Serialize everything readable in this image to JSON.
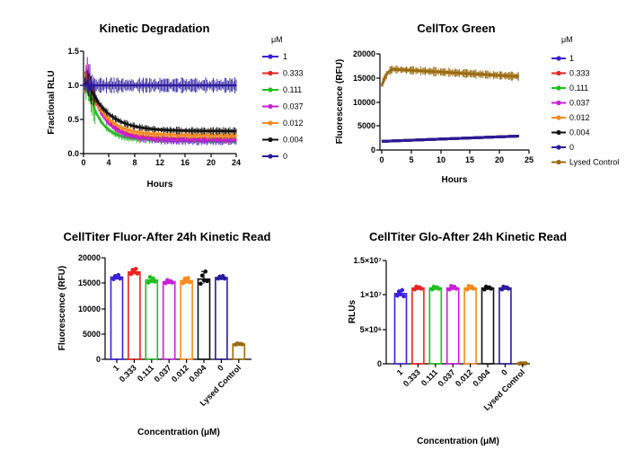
{
  "chart_data": [
    {
      "type": "line",
      "title": "Kinetic Degradation",
      "xlabel": "Hours",
      "ylabel": "Fractional RLU",
      "xlim": [
        0,
        24
      ],
      "ylim": [
        0.0,
        1.5
      ],
      "xticks": [
        "0",
        "4",
        "8",
        "12",
        "16",
        "20",
        "24"
      ],
      "yticks": [
        "0.0",
        "0.5",
        "1.0",
        "1.5"
      ],
      "legend_title": "μM",
      "legend_position": "right",
      "series": [
        {
          "name": "1",
          "color": "#3a1fd6",
          "start": 1.0,
          "peak": 1.25,
          "plateau": 0.18,
          "tau": 2.6
        },
        {
          "name": "0.333",
          "color": "#e8231e",
          "start": 1.0,
          "peak": 1.15,
          "plateau": 0.22,
          "tau": 2.5
        },
        {
          "name": "0.111",
          "color": "#1fbf1f",
          "start": 1.0,
          "peak": 1.0,
          "plateau": 0.2,
          "tau": 2.0
        },
        {
          "name": "0.037",
          "color": "#c71fd6",
          "start": 1.0,
          "peak": 1.2,
          "plateau": 0.2,
          "tau": 2.4
        },
        {
          "name": "0.012",
          "color": "#f58a1f",
          "start": 1.0,
          "peak": 1.1,
          "plateau": 0.27,
          "tau": 2.7
        },
        {
          "name": "0.004",
          "color": "#111111",
          "start": 1.0,
          "peak": 1.05,
          "plateau": 0.33,
          "tau": 3.2
        },
        {
          "name": "0",
          "color": "#2a1a9e",
          "start": 1.0,
          "peak": 1.0,
          "plateau": 1.0,
          "tau": 0
        }
      ]
    },
    {
      "type": "line",
      "title": "CellTox Green",
      "xlabel": "Hours",
      "ylabel": "Fluorescence (RFU)",
      "xlim": [
        0,
        25
      ],
      "ylim": [
        0,
        20000
      ],
      "xticks": [
        "0",
        "5",
        "10",
        "15",
        "20",
        "25"
      ],
      "yticks": [
        "0",
        "5000",
        "10000",
        "15000",
        "20000"
      ],
      "legend_title": "μM",
      "legend_position": "right",
      "series": [
        {
          "name": "1",
          "color": "#3a1fd6",
          "start": 1800,
          "end": 2900
        },
        {
          "name": "0.333",
          "color": "#e8231e",
          "start": 1800,
          "end": 2900
        },
        {
          "name": "0.111",
          "color": "#1fbf1f",
          "start": 1800,
          "end": 2900
        },
        {
          "name": "0.037",
          "color": "#c71fd6",
          "start": 1800,
          "end": 2900
        },
        {
          "name": "0.012",
          "color": "#f58a1f",
          "start": 1800,
          "end": 2900
        },
        {
          "name": "0.004",
          "color": "#111111",
          "start": 1800,
          "end": 2900
        },
        {
          "name": "0",
          "color": "#2a1a9e",
          "start": 1800,
          "end": 2900
        },
        {
          "name": "Lysed Control",
          "color": "#9a6a0f",
          "start": 13500,
          "peak": 16800,
          "end": 15300
        }
      ]
    },
    {
      "type": "bar",
      "title": "CellTiter Fluor-After 24h Kinetic Read",
      "xlabel": "Concentration (μM)",
      "ylabel": "Fluorescence (RFU)",
      "ylim": [
        0,
        20000
      ],
      "yticks": [
        "0",
        "5000",
        "10000",
        "15000",
        "20000"
      ],
      "categories": [
        "1",
        "0.333",
        "0.111",
        "0.037",
        "0.012",
        "0.004",
        "0",
        "Lysed Control"
      ],
      "values": [
        16200,
        17200,
        15600,
        15300,
        15500,
        15800,
        16100,
        3000
      ],
      "colors": [
        "#3a1fd6",
        "#e8231e",
        "#1fbf1f",
        "#c71fd6",
        "#f58a1f",
        "#111111",
        "#2a1a9e",
        "#9a6a0f"
      ],
      "points": [
        [
          15800,
          16400,
          16100,
          16600,
          15900
        ],
        [
          16800,
          17600,
          17100,
          17800,
          16900
        ],
        [
          15100,
          16200,
          15400,
          15900,
          15300
        ],
        [
          15000,
          15600,
          15200,
          15400,
          15100
        ],
        [
          15000,
          15900,
          15300,
          16000,
          15200
        ],
        [
          14900,
          16500,
          15600,
          17300,
          15400
        ],
        [
          15900,
          16300,
          16000,
          16400,
          15900
        ],
        [
          2900,
          3100,
          3000,
          3050,
          2950
        ]
      ]
    },
    {
      "type": "bar",
      "title": "CellTiter Glo-After 24h Kinetic Read",
      "xlabel": "Concentration (μM)",
      "ylabel": "RLUs",
      "ylim": [
        0,
        15000000
      ],
      "yticks": [
        "0",
        "5×10⁶",
        "1×10⁷",
        "1.5×10⁷"
      ],
      "categories": [
        "1",
        "0.333",
        "0.111",
        "0.037",
        "0.012",
        "0.004",
        "0",
        "Lysed Control"
      ],
      "values": [
        10200000,
        11000000,
        11000000,
        11000000,
        11000000,
        11000000,
        11000000,
        50000
      ],
      "colors": [
        "#3a1fd6",
        "#e8231e",
        "#1fbf1f",
        "#c71fd6",
        "#f58a1f",
        "#111111",
        "#2a1a9e",
        "#9a6a0f"
      ],
      "points": [
        [
          9900000,
          10500000,
          10100000,
          10700000,
          9800000
        ],
        [
          10800000,
          11200000,
          11000000,
          11100000,
          10900000
        ],
        [
          10800000,
          11200000,
          11000000,
          11100000,
          10900000
        ],
        [
          10800000,
          11300000,
          11000000,
          11200000,
          10900000
        ],
        [
          10800000,
          11300000,
          11000000,
          11200000,
          10900000
        ],
        [
          10800000,
          11200000,
          11000000,
          11100000,
          10900000
        ],
        [
          10800000,
          11200000,
          11000000,
          11100000,
          10900000
        ],
        [
          30000,
          60000,
          50000,
          40000,
          70000
        ]
      ]
    }
  ]
}
